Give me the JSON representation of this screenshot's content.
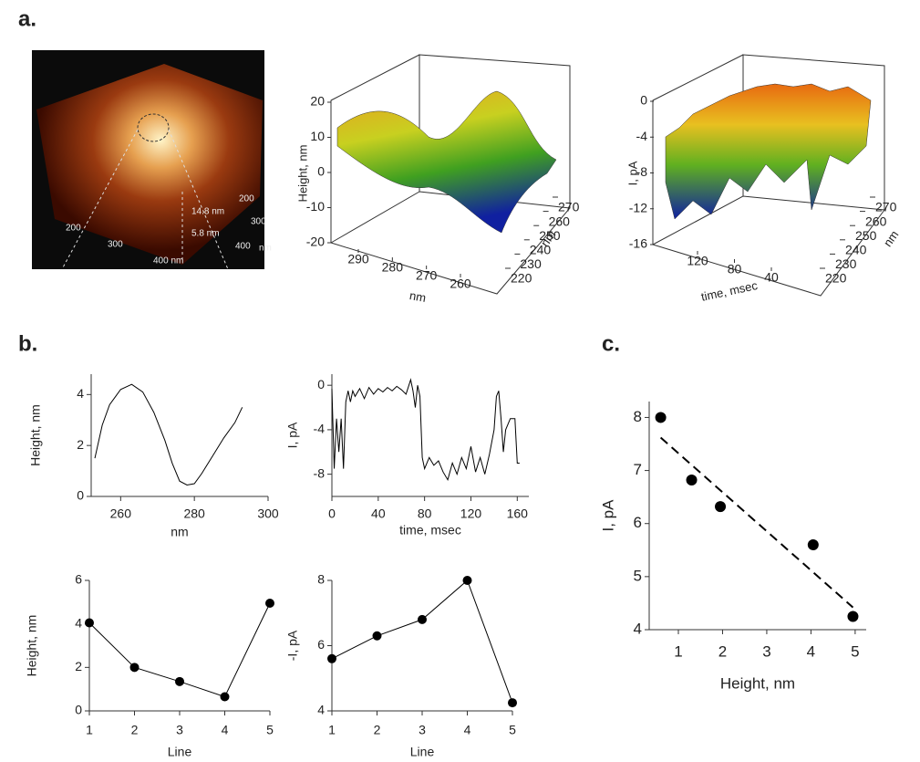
{
  "panel_labels": [
    "a.",
    "b.",
    "c."
  ],
  "chart_data": [
    {
      "type": "image",
      "annotations": [
        "14.8 nm",
        "5.8 nm",
        "200",
        "300",
        "400 nm",
        "200",
        "300",
        "400",
        "nm"
      ]
    },
    {
      "type": "surface3d",
      "zlabel": "Height, nm",
      "xlabel": "nm",
      "ylabel": "nm",
      "zticks": [
        20,
        10,
        0,
        -10,
        -20
      ],
      "xticks": [
        290,
        280,
        270,
        260
      ],
      "yticks": [
        270,
        260,
        250,
        240,
        230,
        220
      ]
    },
    {
      "type": "surface3d",
      "zlabel": "I, pA",
      "xlabel": "time, msec",
      "ylabel": "nm",
      "zticks": [
        0,
        -4,
        -8,
        -12,
        -16
      ],
      "xticks": [
        120,
        80,
        40
      ],
      "yticks": [
        270,
        260,
        250,
        240,
        230,
        220
      ]
    },
    {
      "type": "line",
      "xlabel": "nm",
      "ylabel": "Height, nm",
      "color": "#000000",
      "x": [
        253,
        255,
        257,
        260,
        263,
        266,
        269,
        272,
        274,
        276,
        278,
        280,
        282,
        285,
        288,
        291,
        293
      ],
      "values": [
        1.5,
        2.8,
        3.6,
        4.2,
        4.4,
        4.1,
        3.3,
        2.2,
        1.3,
        0.6,
        0.45,
        0.5,
        0.9,
        1.6,
        2.3,
        2.9,
        3.5
      ],
      "xlim": [
        252,
        300
      ],
      "xticks": [
        260,
        280,
        300
      ],
      "ylim": [
        0,
        4.8
      ],
      "yticks": [
        0,
        2,
        4
      ]
    },
    {
      "type": "line",
      "xlabel": "time, msec",
      "ylabel": "I, pA",
      "color": "#000000",
      "x": [
        0,
        2,
        4,
        6,
        8,
        10,
        12,
        14,
        16,
        18,
        20,
        24,
        28,
        32,
        36,
        40,
        44,
        48,
        52,
        56,
        60,
        64,
        68,
        70,
        72,
        74,
        76,
        78,
        80,
        84,
        88,
        92,
        96,
        100,
        104,
        108,
        112,
        116,
        120,
        124,
        128,
        132,
        136,
        140,
        142,
        144,
        146,
        148,
        150,
        154,
        158,
        160,
        162
      ],
      "values": [
        -0.3,
        -7.5,
        -3,
        -6,
        -3,
        -7.5,
        -1.5,
        -0.5,
        -1.5,
        -0.5,
        -1,
        -0.3,
        -1.2,
        -0.2,
        -0.8,
        -0.3,
        -0.6,
        -0.2,
        -0.5,
        -0.1,
        -0.4,
        -0.8,
        0.5,
        -0.5,
        -2,
        0,
        -1,
        -6.5,
        -7.5,
        -6.5,
        -7.2,
        -6.8,
        -7.8,
        -8.5,
        -7,
        -8,
        -6.5,
        -7.5,
        -5.5,
        -7.8,
        -6.5,
        -8,
        -6.2,
        -4,
        -1,
        -0.5,
        -3,
        -6,
        -4,
        -3,
        -3,
        -7,
        -7
      ],
      "xlim": [
        0,
        170
      ],
      "xticks": [
        0,
        40,
        80,
        120,
        160
      ],
      "ylim": [
        -10,
        1
      ],
      "yticks": [
        0,
        -4,
        -8
      ]
    },
    {
      "type": "line",
      "markers": true,
      "xlabel": "Line",
      "ylabel": "Height, nm",
      "color": "#000000",
      "x": [
        1,
        2,
        3,
        4,
        5
      ],
      "values": [
        4.05,
        2.0,
        1.35,
        0.65,
        4.95
      ],
      "xlim": [
        1,
        5
      ],
      "xticks": [
        1,
        2,
        3,
        4,
        5
      ],
      "ylim": [
        0,
        6
      ],
      "yticks": [
        0,
        2,
        4,
        6
      ]
    },
    {
      "type": "line",
      "markers": true,
      "xlabel": "Line",
      "ylabel": "-I, pA",
      "color": "#000000",
      "x": [
        1,
        2,
        3,
        4,
        5
      ],
      "values": [
        5.6,
        6.3,
        6.8,
        8.0,
        4.25
      ],
      "xlim": [
        1,
        5
      ],
      "xticks": [
        1,
        2,
        3,
        4,
        5
      ],
      "ylim": [
        4,
        8
      ],
      "yticks": [
        4,
        6,
        8
      ]
    },
    {
      "type": "scatter",
      "xlabel": "Height, nm",
      "ylabel": "I, pA",
      "color": "#000000",
      "x": [
        0.6,
        1.3,
        1.95,
        4.05,
        4.95
      ],
      "values": [
        8.0,
        6.82,
        6.32,
        5.6,
        4.25
      ],
      "trendline": {
        "x": [
          0.6,
          4.95
        ],
        "values": [
          7.62,
          4.42
        ]
      },
      "xlim": [
        0.34,
        5.25
      ],
      "xticks": [
        1,
        2,
        3,
        4,
        5
      ],
      "ylim": [
        4,
        8.3
      ],
      "yticks": [
        4,
        5,
        6,
        7,
        8
      ]
    }
  ]
}
